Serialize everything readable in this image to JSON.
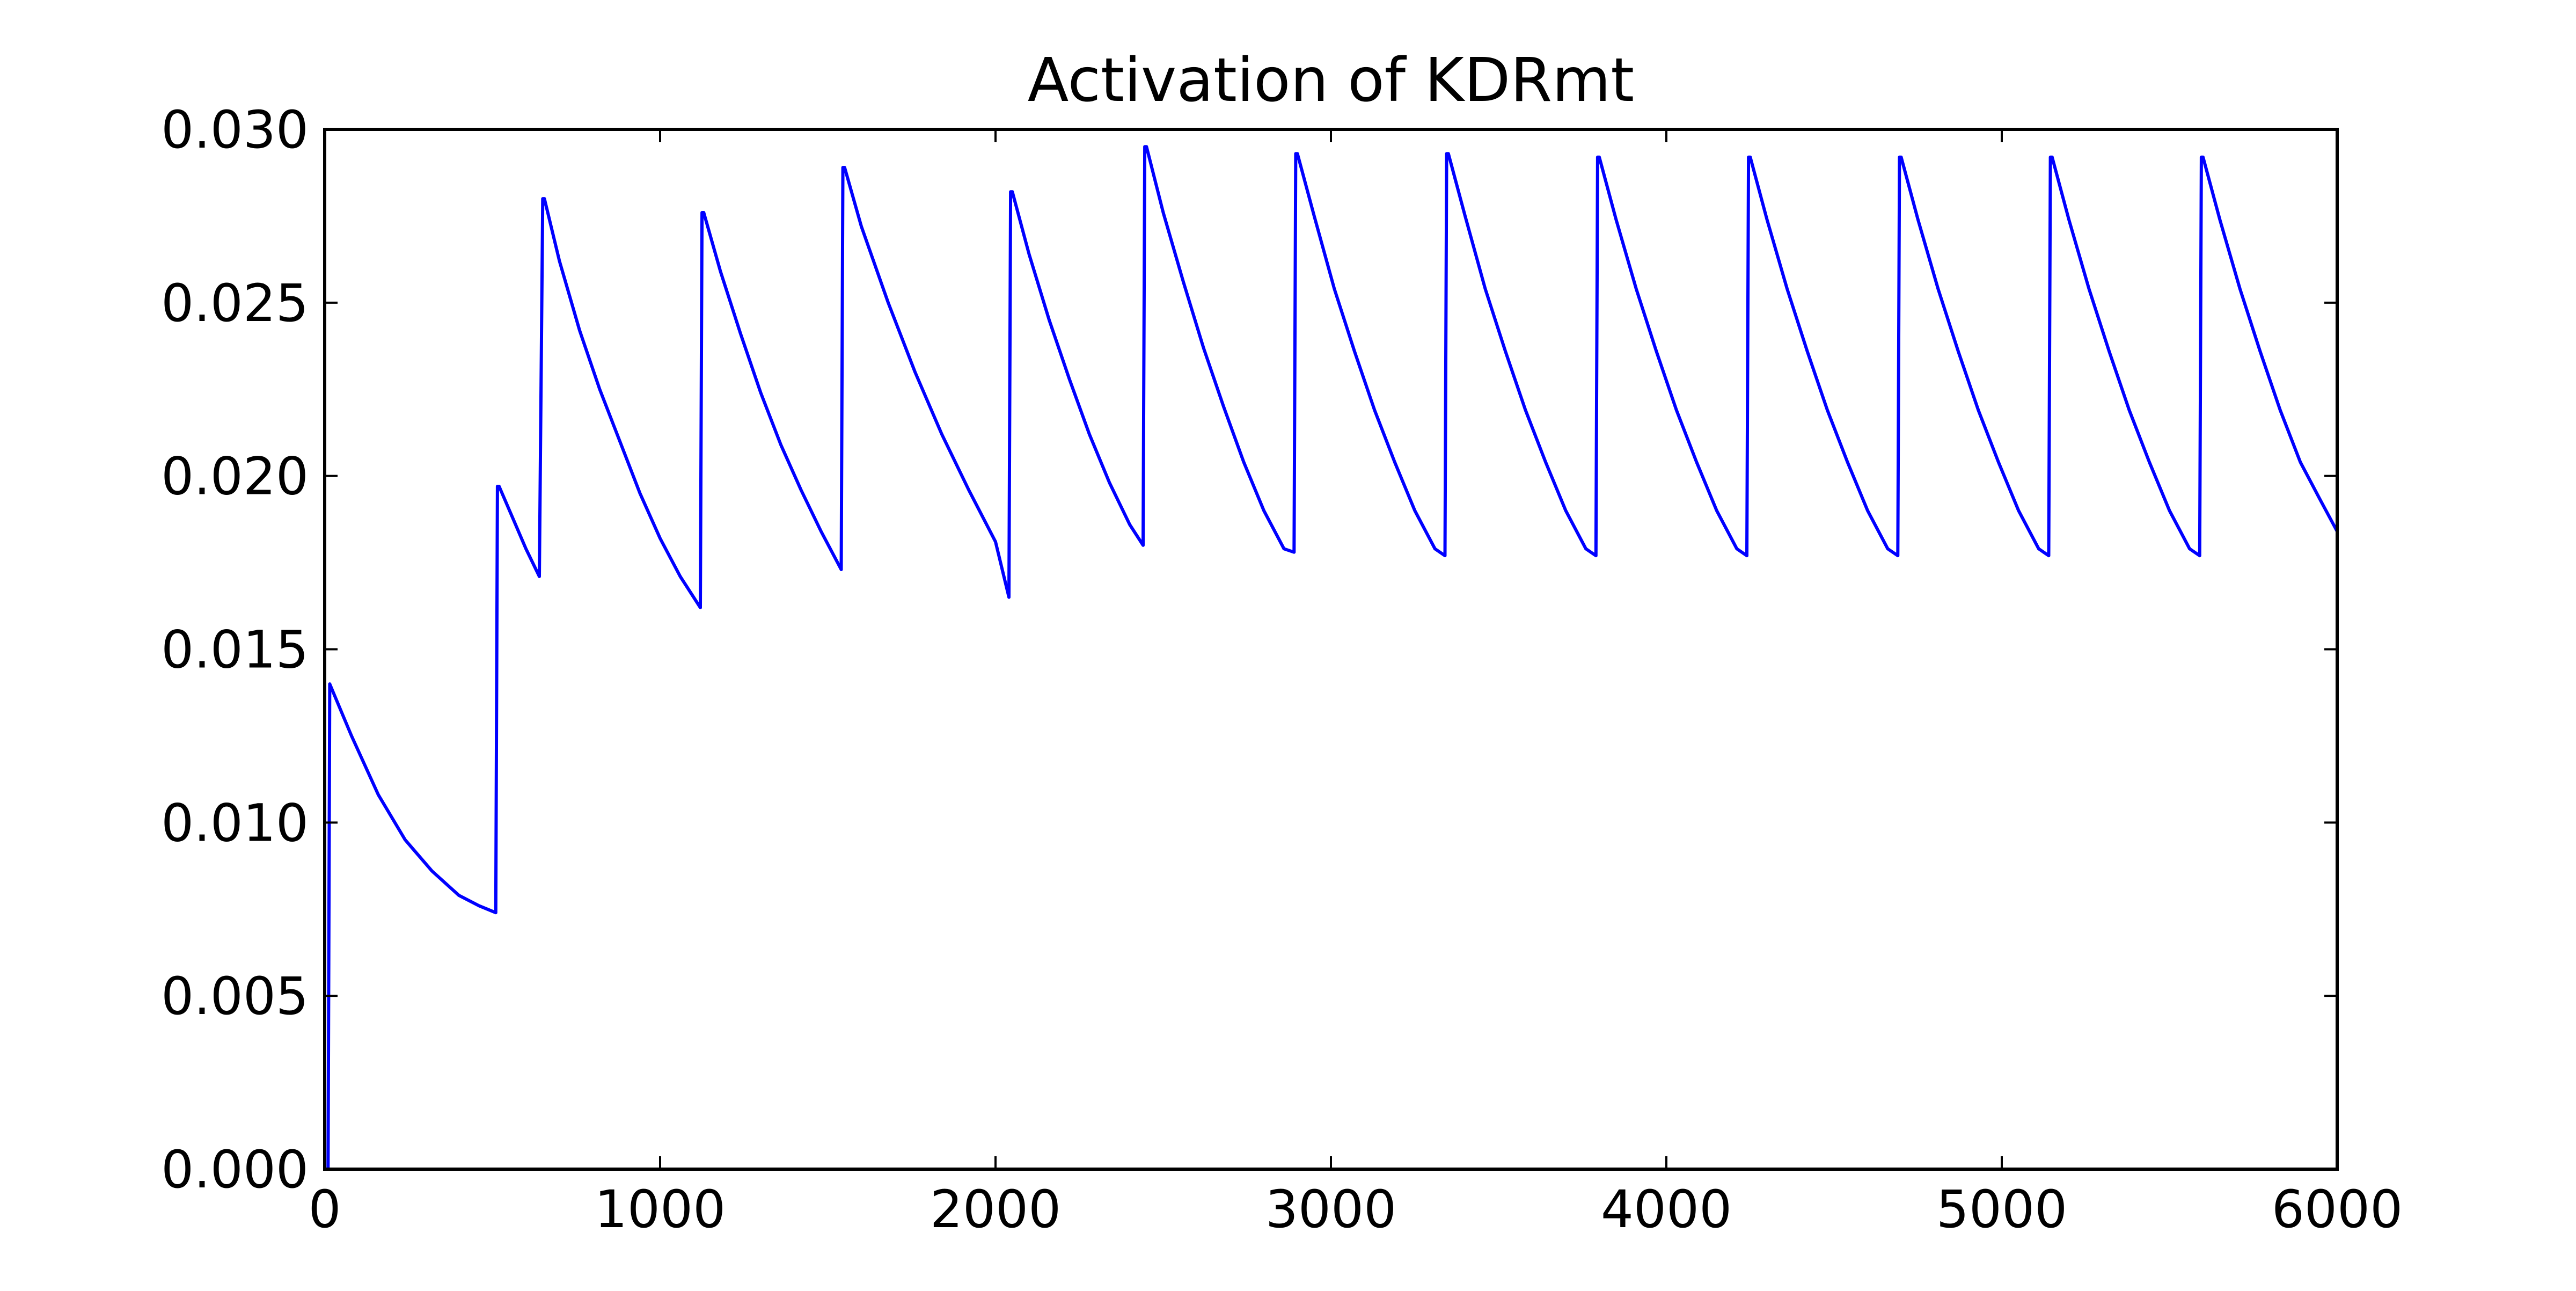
{
  "chart_data": {
    "type": "line",
    "title": "Activation of KDRmt",
    "xlabel": "",
    "ylabel": "",
    "xlim": [
      0,
      6000
    ],
    "ylim": [
      0,
      0.03
    ],
    "x_ticks": [
      "0",
      "1000",
      "2000",
      "3000",
      "4000",
      "5000",
      "6000"
    ],
    "y_ticks": [
      "0.000",
      "0.005",
      "0.010",
      "0.015",
      "0.020",
      "0.025",
      "0.030"
    ],
    "grid": false,
    "line_color": "#0000ff",
    "series": [
      {
        "x": [
          0,
          10,
          15,
          80,
          160,
          240,
          320,
          400,
          460,
          510,
          515,
          520,
          560,
          600,
          640,
          650,
          655,
          700,
          760,
          820,
          880,
          940,
          1000,
          1060,
          1120,
          1125,
          1130,
          1180,
          1240,
          1300,
          1360,
          1420,
          1480,
          1540,
          1545,
          1550,
          1600,
          1680,
          1760,
          1840,
          1920,
          2000,
          2040,
          2045,
          2050,
          2100,
          2160,
          2220,
          2280,
          2340,
          2400,
          2440,
          2445,
          2450,
          2500,
          2560,
          2620,
          2680,
          2740,
          2800,
          2860,
          2890,
          2895,
          2900,
          2950,
          3010,
          3070,
          3130,
          3190,
          3250,
          3310,
          3340,
          3345,
          3350,
          3400,
          3460,
          3520,
          3580,
          3640,
          3700,
          3760,
          3790,
          3795,
          3800,
          3850,
          3910,
          3970,
          4030,
          4090,
          4150,
          4210,
          4240,
          4245,
          4250,
          4300,
          4360,
          4420,
          4480,
          4540,
          4600,
          4660,
          4690,
          4695,
          4700,
          4750,
          4810,
          4870,
          4930,
          4990,
          5050,
          5110,
          5140,
          5145,
          5150,
          5200,
          5260,
          5320,
          5380,
          5440,
          5500,
          5560,
          5590,
          5595,
          5600,
          5650,
          5710,
          5770,
          5830,
          5890,
          5950,
          6000
        ],
        "values": [
          0.0,
          0.0,
          0.014,
          0.0125,
          0.0108,
          0.0095,
          0.0086,
          0.0079,
          0.0076,
          0.0074,
          0.0197,
          0.0197,
          0.0188,
          0.0179,
          0.0171,
          0.028,
          0.028,
          0.0262,
          0.0242,
          0.0225,
          0.021,
          0.0195,
          0.0182,
          0.0171,
          0.0162,
          0.0276,
          0.0276,
          0.0259,
          0.0241,
          0.0224,
          0.0209,
          0.0196,
          0.0184,
          0.0173,
          0.0289,
          0.0289,
          0.0272,
          0.025,
          0.023,
          0.0212,
          0.0196,
          0.0181,
          0.0165,
          0.0282,
          0.0282,
          0.0264,
          0.0245,
          0.0228,
          0.0212,
          0.0198,
          0.0186,
          0.018,
          0.0295,
          0.0295,
          0.0276,
          0.0256,
          0.0237,
          0.022,
          0.0204,
          0.019,
          0.0179,
          0.0178,
          0.0293,
          0.0293,
          0.0275,
          0.0254,
          0.0236,
          0.0219,
          0.0204,
          0.019,
          0.0179,
          0.0177,
          0.0293,
          0.0293,
          0.0275,
          0.0254,
          0.0236,
          0.0219,
          0.0204,
          0.019,
          0.0179,
          0.0177,
          0.0292,
          0.0292,
          0.0274,
          0.0254,
          0.0236,
          0.0219,
          0.0204,
          0.019,
          0.0179,
          0.0177,
          0.0292,
          0.0292,
          0.0274,
          0.0254,
          0.0236,
          0.0219,
          0.0204,
          0.019,
          0.0179,
          0.0177,
          0.0292,
          0.0292,
          0.0274,
          0.0254,
          0.0236,
          0.0219,
          0.0204,
          0.019,
          0.0179,
          0.0177,
          0.0292,
          0.0292,
          0.0274,
          0.0254,
          0.0236,
          0.0219,
          0.0204,
          0.019,
          0.0179,
          0.0177,
          0.0292,
          0.0292,
          0.0274,
          0.0254,
          0.0236,
          0.0219,
          0.0204,
          0.0193,
          0.0184
        ]
      }
    ]
  }
}
